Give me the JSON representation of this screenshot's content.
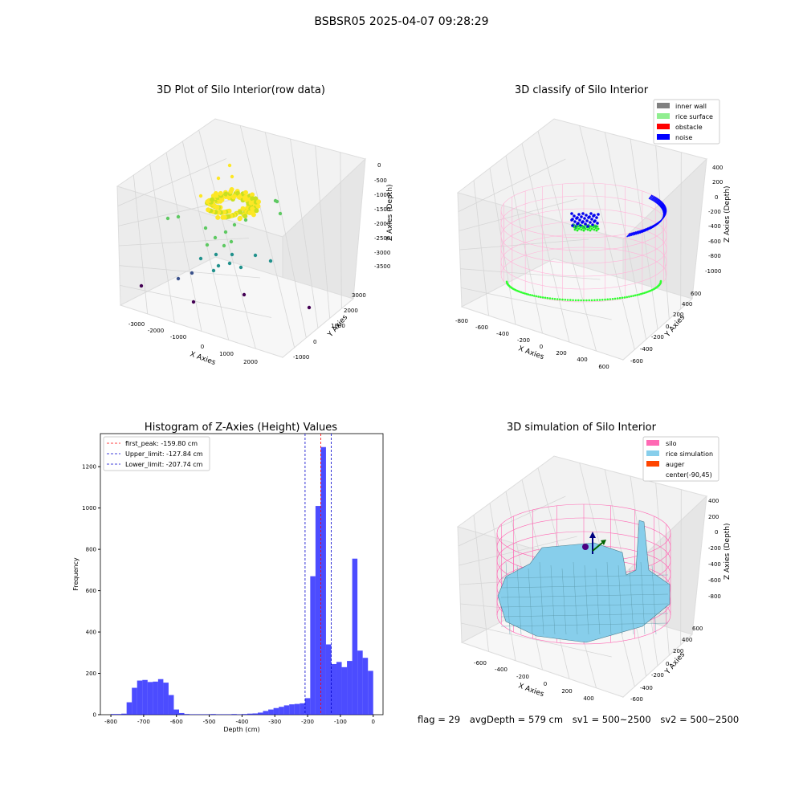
{
  "suptitle": "BSBSR05 2025-04-07 09:28:29",
  "chart_data": [
    {
      "type": "scatter",
      "title": "3D Plot of Silo Interior(row data)",
      "xlabel": "X Axies",
      "ylabel": "Y Axies",
      "zlabel": "Z Axies (Depth)",
      "x_ticks": [
        "-3000",
        "-2000",
        "-1000",
        "0",
        "1000",
        "2000"
      ],
      "y_ticks": [
        "-1000",
        "0",
        "1000",
        "2000",
        "3000"
      ],
      "z_ticks": [
        "0",
        "-500",
        "-1000",
        "-1500",
        "-2000",
        "-2500",
        "-3000",
        "-3500"
      ],
      "colormap": [
        "#440154",
        "#3b528b",
        "#21918c",
        "#5ec962",
        "#fde725"
      ]
    },
    {
      "type": "scatter",
      "title": "3D classify of Silo Interior",
      "xlabel": "X Axies",
      "ylabel": "Y Axies",
      "zlabel": "Z Axies (Depth)",
      "x_ticks": [
        "-800",
        "-600",
        "-400",
        "-200",
        "0",
        "200",
        "400",
        "600"
      ],
      "y_ticks": [
        "-600",
        "-400",
        "-200",
        "0",
        "200",
        "400",
        "600"
      ],
      "z_ticks": [
        "400",
        "200",
        "0",
        "-200",
        "-400",
        "-600",
        "-800",
        "-1000"
      ],
      "legend": [
        {
          "label": "inner wall",
          "color": "#808080"
        },
        {
          "label": "rice surface",
          "color": "#90ee90"
        },
        {
          "label": "obstacle",
          "color": "#ff0000"
        },
        {
          "label": "noise",
          "color": "#0000ff"
        }
      ],
      "legend_position": "top-right"
    },
    {
      "type": "bar",
      "title": "Histogram of Z-Axies (Height) Values",
      "xlabel": "Depth (cm)",
      "ylabel": "Frequency",
      "xlim": [
        -832,
        30
      ],
      "ylim": [
        0,
        1360
      ],
      "x_ticks": [
        -800,
        -700,
        -600,
        -500,
        -400,
        -300,
        -200,
        -100,
        0
      ],
      "y_ticks": [
        0,
        200,
        400,
        600,
        800,
        1000,
        1200
      ],
      "bin_width": 16,
      "bin_start": -800,
      "values": [
        3,
        3,
        5,
        60,
        130,
        165,
        168,
        158,
        160,
        172,
        155,
        95,
        25,
        8,
        3,
        2,
        2,
        2,
        2,
        3,
        2,
        2,
        2,
        3,
        2,
        3,
        5,
        6,
        10,
        18,
        25,
        32,
        38,
        45,
        50,
        52,
        55,
        80,
        670,
        1010,
        1295,
        340,
        245,
        255,
        230,
        260,
        755,
        310,
        275,
        212
      ],
      "color": "#0000ff",
      "vlines": [
        {
          "label": "first_peak: -159.80 cm",
          "x": -159.8,
          "color": "#ff0000"
        },
        {
          "label": "Upper_limit: -127.84 cm",
          "x": -127.84,
          "color": "#0000cd"
        },
        {
          "label": "Lower_limit: -207.74 cm",
          "x": -207.74,
          "color": "#0000cd"
        }
      ],
      "legend_position": "top-left"
    },
    {
      "type": "surface",
      "title": "3D simulation of Silo Interior",
      "xlabel": "X Axies",
      "ylabel": "Y Axies",
      "zlabel": "Z Axies (Depth)",
      "x_ticks": [
        "-600",
        "-400",
        "-200",
        "0",
        "200",
        "400"
      ],
      "y_ticks": [
        "-600",
        "-400",
        "-200",
        "0",
        "200",
        "400",
        "600"
      ],
      "z_ticks": [
        "400",
        "200",
        "0",
        "-200",
        "-400",
        "-600",
        "-800"
      ],
      "legend": [
        {
          "label": "silo",
          "color": "#ff69b4"
        },
        {
          "label": "rice simulation",
          "color": "#87ceeb"
        },
        {
          "label": "auger",
          "color": "#ff4500"
        },
        {
          "label": "center(-90,45)",
          "color": ""
        }
      ],
      "legend_position": "top-right"
    }
  ],
  "footer": {
    "flag": "flag = 29",
    "avg_depth": "avgDepth = 579 cm",
    "sv1": "sv1 = 500~2500",
    "sv2": "sv2 = 500~2500"
  }
}
